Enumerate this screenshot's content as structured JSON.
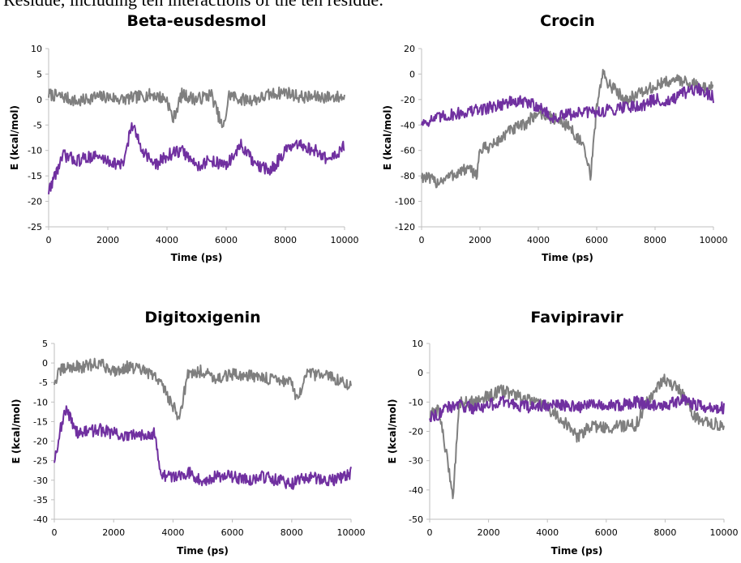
{
  "top_text": "Residue, including ten interactions of the ten residue:",
  "colors": {
    "gray_series": "#7f7f7f",
    "purple_series": "#7030a0",
    "axis": "#bfbfbf",
    "text": "#000000"
  },
  "chart_data": [
    {
      "type": "line",
      "title": "Beta-eusdesmol",
      "xlabel": "Time (ps)",
      "ylabel": "E (kcal/mol)",
      "xlim": [
        0,
        10000
      ],
      "ylim": [
        -25,
        10
      ],
      "xticks": [
        0,
        2000,
        4000,
        6000,
        8000,
        10000
      ],
      "yticks": [
        -25,
        -20,
        -15,
        -10,
        -5,
        0,
        5,
        10
      ],
      "series": [
        {
          "color": "gray",
          "x": [
            0,
            500,
            1000,
            1500,
            2000,
            2500,
            3000,
            3500,
            4000,
            4200,
            4500,
            5000,
            5500,
            5900,
            6100,
            6500,
            7000,
            7500,
            8000,
            8500,
            9000,
            9500,
            10000
          ],
          "y": [
            1,
            0.5,
            -0.5,
            0.5,
            0.5,
            0,
            0.5,
            1,
            0,
            -4,
            1,
            0,
            1,
            -6,
            1,
            0,
            0,
            1,
            1.5,
            0.5,
            0.5,
            0.5,
            0.5
          ]
        },
        {
          "color": "purple",
          "x": [
            0,
            200,
            500,
            1000,
            1500,
            2000,
            2500,
            2800,
            3200,
            3600,
            4000,
            4500,
            5000,
            5500,
            6000,
            6500,
            7000,
            7500,
            8000,
            8500,
            9000,
            9500,
            10000
          ],
          "y": [
            -18,
            -15,
            -11,
            -12,
            -11,
            -12,
            -13,
            -5,
            -10,
            -13,
            -11,
            -10,
            -13,
            -12,
            -13,
            -9,
            -13,
            -14,
            -10,
            -9,
            -10,
            -12,
            -9
          ]
        }
      ]
    },
    {
      "type": "line",
      "title": "Crocin",
      "xlabel": "Time (ps)",
      "ylabel": "E (kcal/mol)",
      "xlim": [
        0,
        10000
      ],
      "ylim": [
        -120,
        20
      ],
      "xticks": [
        0,
        2000,
        4000,
        6000,
        8000,
        10000
      ],
      "yticks": [
        -120,
        -100,
        -80,
        -60,
        -40,
        -20,
        0,
        20
      ],
      "series": [
        {
          "color": "gray",
          "x": [
            0,
            500,
            1000,
            1500,
            1900,
            2000,
            2500,
            3000,
            3500,
            4000,
            4500,
            5000,
            5500,
            5800,
            6000,
            6200,
            6500,
            7000,
            7500,
            8000,
            8500,
            9000,
            9500,
            10000
          ],
          "y": [
            -80,
            -85,
            -80,
            -75,
            -78,
            -60,
            -55,
            -45,
            -40,
            -30,
            -35,
            -40,
            -55,
            -80,
            -25,
            0,
            -10,
            -20,
            -15,
            -10,
            -5,
            -5,
            -10,
            -10
          ]
        },
        {
          "color": "purple",
          "x": [
            0,
            500,
            1000,
            1500,
            2000,
            2500,
            3000,
            3500,
            4000,
            4500,
            5000,
            5500,
            6000,
            6500,
            7000,
            7500,
            8000,
            8500,
            9000,
            9500,
            10000
          ],
          "y": [
            -38,
            -35,
            -32,
            -30,
            -28,
            -25,
            -22,
            -22,
            -25,
            -35,
            -32,
            -30,
            -30,
            -28,
            -25,
            -25,
            -20,
            -22,
            -15,
            -12,
            -18
          ]
        }
      ]
    },
    {
      "type": "line",
      "title": "Digitoxigenin",
      "xlabel": "Time (ps)",
      "ylabel": "E (kcal/mol)",
      "xlim": [
        0,
        10000
      ],
      "ylim": [
        -40,
        5
      ],
      "xticks": [
        0,
        2000,
        4000,
        6000,
        8000,
        10000
      ],
      "yticks": [
        -40,
        -35,
        -30,
        -25,
        -20,
        -15,
        -10,
        -5,
        0,
        5
      ],
      "series": [
        {
          "color": "gray",
          "x": [
            0,
            200,
            500,
            1000,
            1500,
            2000,
            2500,
            3000,
            3500,
            3800,
            4200,
            4500,
            5000,
            5500,
            6000,
            6500,
            7000,
            7500,
            8000,
            8200,
            8500,
            9000,
            9500,
            10000
          ],
          "y": [
            -5,
            -2,
            -1,
            -1,
            0,
            -2,
            -1,
            -2,
            -4,
            -8,
            -14,
            -3,
            -2,
            -4,
            -3,
            -3,
            -4,
            -4,
            -5,
            -10,
            -3,
            -3,
            -4,
            -6
          ]
        },
        {
          "color": "purple",
          "x": [
            0,
            200,
            400,
            800,
            1500,
            2000,
            2500,
            3000,
            3400,
            3600,
            4000,
            4500,
            5000,
            5500,
            6000,
            6500,
            7000,
            7500,
            8000,
            8500,
            9000,
            9500,
            10000
          ],
          "y": [
            -25,
            -17,
            -12,
            -18,
            -17,
            -18,
            -19,
            -18,
            -18,
            -29,
            -29,
            -28,
            -30,
            -29,
            -29,
            -30,
            -29,
            -30,
            -31,
            -29,
            -30,
            -30,
            -28
          ]
        }
      ]
    },
    {
      "type": "line",
      "title": "Favipiravir",
      "xlabel": "Time (ps)",
      "ylabel": "E (kcal/mol)",
      "xlim": [
        0,
        10000
      ],
      "ylim": [
        -50,
        10
      ],
      "xticks": [
        0,
        2000,
        4000,
        6000,
        8000,
        10000
      ],
      "yticks": [
        -50,
        -40,
        -30,
        -20,
        -10,
        0,
        10
      ],
      "series": [
        {
          "color": "gray",
          "x": [
            0,
            300,
            600,
            800,
            1000,
            1500,
            2000,
            2500,
            3000,
            3500,
            4000,
            4500,
            5000,
            5500,
            6000,
            6500,
            7000,
            7500,
            8000,
            8500,
            9000,
            9500,
            10000
          ],
          "y": [
            -15,
            -12,
            -30,
            -42,
            -10,
            -10,
            -8,
            -6,
            -8,
            -10,
            -12,
            -16,
            -22,
            -18,
            -19,
            -18,
            -18,
            -8,
            -2,
            -6,
            -15,
            -17,
            -18
          ]
        },
        {
          "color": "purple",
          "x": [
            0,
            300,
            600,
            1000,
            1500,
            2000,
            2500,
            3000,
            3500,
            4000,
            4500,
            5000,
            5500,
            6000,
            6500,
            7000,
            7500,
            8000,
            8500,
            9000,
            9500,
            10000
          ],
          "y": [
            -15,
            -14,
            -12,
            -11,
            -12,
            -11,
            -10,
            -11,
            -12,
            -11,
            -11,
            -12,
            -10,
            -11,
            -11,
            -10,
            -11,
            -12,
            -9,
            -11,
            -12,
            -12
          ]
        }
      ]
    }
  ]
}
